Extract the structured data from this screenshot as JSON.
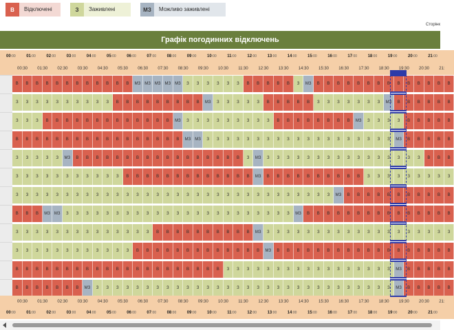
{
  "legend": [
    {
      "code": "В",
      "label": "Відключені",
      "kind": "off"
    },
    {
      "code": "З",
      "label": "Заживлені",
      "kind": "on"
    },
    {
      "code": "МЗ",
      "label": "Можливо заживлені",
      "kind": "maybe"
    }
  ],
  "page_label": "Сторінк",
  "title": "Графік погодинних відключень",
  "hours": [
    "00",
    "01",
    "02",
    "03",
    "04",
    "05",
    "06",
    "07",
    "08",
    "09",
    "10",
    "11",
    "12",
    "13",
    "14",
    "15",
    "16",
    "17",
    "18",
    "19",
    "20",
    "21"
  ],
  "hour_minutes": ":00",
  "halves": [
    "00:30",
    "01:30",
    "02:30",
    "03:30",
    "04:30",
    "05:30",
    "06:30",
    "07:30",
    "08:30",
    "09:30",
    "10:30",
    "11:30",
    "12:30",
    "13:30",
    "14:30",
    "15:30",
    "16:30",
    "17:30",
    "18:30",
    "19:30",
    "20:30",
    "21:"
  ],
  "cell_codes": {
    "off": "В",
    "on": "З",
    "maybe": "МЗ"
  },
  "now_badge": "",
  "colors": {
    "off": "#d9614f",
    "on": "#cfd79c",
    "maybe": "#a7b4c2",
    "header": "#6a7f3d",
    "hours_bg": "#f5cfa8",
    "now": "#2d3aa8"
  },
  "rows": [
    "oooooooooooommmmmnnnnnnooooonmooooooooooooooooooooonmooooooooooooooo",
    "nnnnnnnnnnooooooooomnnnnnooooonnnnnnnmooooooooooooooomnnnnnnnnnnnnnn",
    "nnnooooooooooooomnnnnnnnnnoooooooomnnnnoooooooooooooooomooooooooooo",
    "ooooooooooooooooommnnnnnnnnnnnnnnnnnnnmoooooooooooooonmnnnnnnmooooooo",
    "nnnnnmooooooooooooooooonmnnnnnnnnnnnnnnnnooooooooonnnnnnnnnnnnnnnnn",
    "nnnnnnnnnnnooooooooooooomoooooooooonnnnnnnnnnnnnnmoooooooooooooooom",
    "nnnnnnnnnnnnnnnnnnnnnnnnnnnnnnnnmoooooooooooonnnnnnnnmooooooooooooooo",
    "ooommnnnnnnnnnnnnnnnnnnnnnnnmoooooooooooooooomnnnnnnnnnnnoooooooooo",
    "nnnnnnnnnnnnnnoooooooooomnnnnnnnnnnnnnnnnnnnnnnnmoooooooooooomnnnnnnnnnn",
    "nnnnnnnnnnnnooooooooooooomoooooooooooooooooooonnnnnnnnnnnmoooooooooo",
    "ooooooooooooooooooooonnnnnnnnnnnnnnnnnmooooooooooooooooonnnnnnnnnnnn",
    "ooooooomnnnnnnnnnnnnnnnnnnnnnnnnnnnnnnmooooooooooooooommnnnnnnnnnnnmmo"
  ]
}
